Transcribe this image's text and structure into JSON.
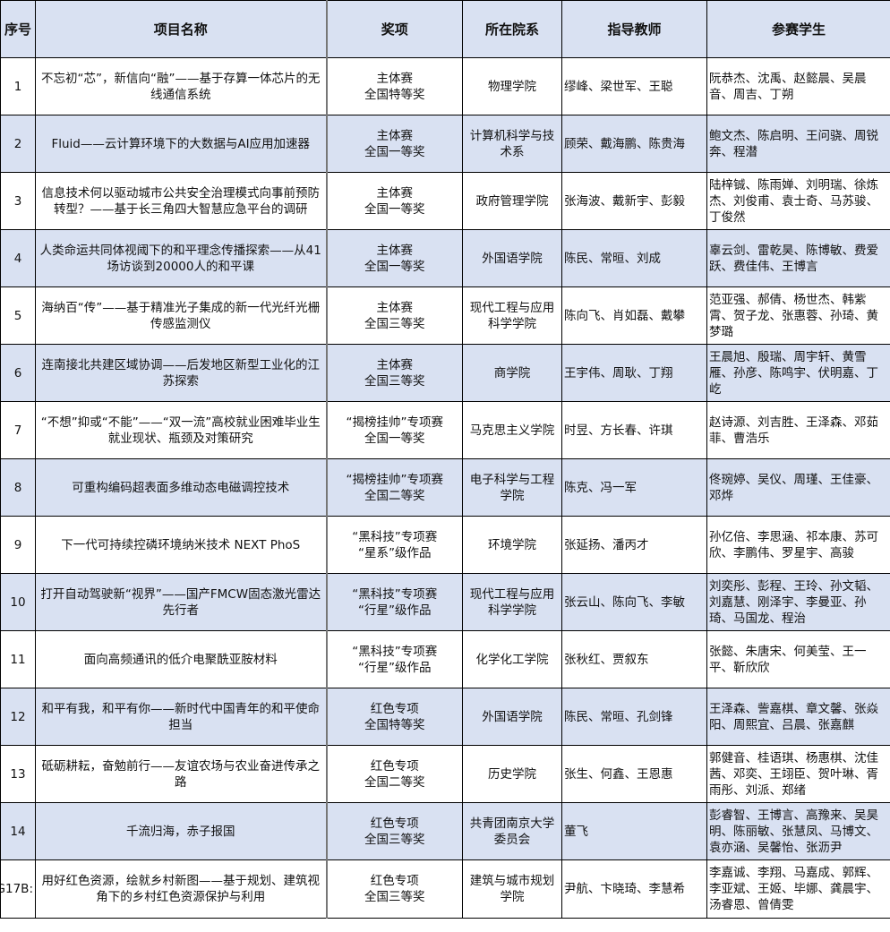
{
  "headers": [
    "序号",
    "项目名称",
    "奖项",
    "所在院系",
    "指导教师",
    "参赛学生"
  ],
  "colors": {
    "header_bg": "#d9e1f2",
    "stripe_bg": "#d9e1f2",
    "border": "#000000"
  },
  "rows": [
    {
      "no": "1",
      "name": "不忘初“芯”，新信向“融”——基于存算一体芯片的无线通信系统",
      "award": [
        "主体赛",
        "全国特等奖"
      ],
      "dept": "物理学院",
      "teachers": "缪峰、梁世军、王聪",
      "students": "阮恭杰、沈禹、赵懿晨、吴晨音、周吉、丁朔"
    },
    {
      "no": "2",
      "name": "Fluid——云计算环境下的大数据与AI应用加速器",
      "award": [
        "主体赛",
        "全国一等奖"
      ],
      "dept": "计算机科学与技术系",
      "teachers": "顾荣、戴海鹏、陈贵海",
      "students": "鲍文杰、陈启明、王问骁、周锐奔、程潜"
    },
    {
      "no": "3",
      "name": "信息技术何以驱动城市公共安全治理模式向事前预防转型？——基于长三角四大智慧应急平台的调研",
      "award": [
        "主体赛",
        "全国一等奖"
      ],
      "dept": "政府管理学院",
      "teachers": "张海波、戴新宇、彭毅",
      "students": "陆梓铖、陈雨婵、刘明瑞、徐炼杰、刘俊甫、袁士奇、马苏骏、丁俊然"
    },
    {
      "no": "4",
      "name": "人类命运共同体视阈下的和平理念传播探索——从41场访谈到20000人的和平课",
      "award": [
        "主体赛",
        "全国一等奖"
      ],
      "dept": "外国语学院",
      "teachers": "陈民、常晅、刘成",
      "students": "辜云剑、雷乾昊、陈博敏、费爱跃、费佳伟、王博言"
    },
    {
      "no": "5",
      "name": "海纳百“传”——基于精准光子集成的新一代光纤光栅传感监测仪",
      "award": [
        "主体赛",
        "全国三等奖"
      ],
      "dept": "现代工程与应用科学学院",
      "teachers": "陈向飞、肖如磊、戴攀",
      "students": "范亚强、郝倩、杨世杰、韩紫霄、贺子龙、张惠蓉、孙琦、黄梦璐"
    },
    {
      "no": "6",
      "name": "连南接北共建区域协调——后发地区新型工业化的江苏探索",
      "award": [
        "主体赛",
        "全国三等奖"
      ],
      "dept": "商学院",
      "teachers": "王宇伟、周耿、丁翔",
      "students": "王晨旭、殷瑞、周宇轩、黄雪雁、孙彦、陈鸣宇、伏明嘉、丁屹"
    },
    {
      "no": "7",
      "name": "“不想”抑或“不能”——“双一流”高校就业困难毕业生就业现状、瓶颈及对策研究",
      "award": [
        "“揭榜挂帅”专项赛",
        "全国一等奖"
      ],
      "dept": "马克思主义学院",
      "teachers": "时昱、方长春、许琪",
      "students": "赵诗源、刘吉胜、王泽森、邓茹菲、曹浩乐"
    },
    {
      "no": "8",
      "name": "可重构编码超表面多维动态电磁调控技术",
      "award": [
        "“揭榜挂帅”专项赛",
        "全国二等奖"
      ],
      "dept": "电子科学与工程学院",
      "teachers": "陈克、冯一军",
      "students": "佟琬婷、吴仪、周瑾、王佳豪、邓烨"
    },
    {
      "no": "9",
      "name": "下一代可持续控磷环境纳米技术 NEXT PhoS",
      "award": [
        "“黑科技”专项赛",
        "“星系”级作品"
      ],
      "dept": "环境学院",
      "teachers": "张延扬、潘丙才",
      "students": "孙亿倍、李思涵、祁本康、苏可欣、李鹏伟、罗星宇、高骏"
    },
    {
      "no": "10",
      "name": "打开自动驾驶新“视界”——国产FMCW固态激光雷达先行者",
      "award": [
        "“黑科技”专项赛",
        "“行星”级作品"
      ],
      "dept": "现代工程与应用科学学院",
      "teachers": "张云山、陈向飞、李敏",
      "students": "刘奕彤、彭程、王玲、孙文韬、刘嘉慧、刚泽宇、李曼亚、孙琦、马国龙、程治"
    },
    {
      "no": "11",
      "name": "面向高频通讯的低介电聚酰亚胺材料",
      "award": [
        "“黑科技”专项赛",
        "“行星”级作品"
      ],
      "dept": "化学化工学院",
      "teachers": "张秋红、贾叙东",
      "students": "张懿、朱唐宋、何美莹、王一平、靳欣欣"
    },
    {
      "no": "12",
      "name": "和平有我，和平有你——新时代中国青年的和平使命担当",
      "award": [
        "红色专项",
        "全国特等奖"
      ],
      "dept": "外国语学院",
      "teachers": "陈民、常晅、孔剑锋",
      "students": "王泽森、訾嘉棋、章文馨、张焱阳、周熙宜、吕晨、张嘉麒"
    },
    {
      "no": "13",
      "name": "砥砺耕耘，奋勉前行——友谊农场与农业奋进传承之路",
      "award": [
        "红色专项",
        "全国二等奖"
      ],
      "dept": "历史学院",
      "teachers": "张生、何鑫、王恩惠",
      "students": "郭健音、桂语琪、杨惠棋、沈佳茜、邓奕、王翊臣、贺叶琳、胥雨彤、刘派、郑绪"
    },
    {
      "no": "14",
      "name": "千流归海，赤子报国",
      "award": [
        "红色专项",
        "全国三等奖"
      ],
      "dept": "共青团南京大学委员会",
      "teachers": "董飞",
      "students": "彭睿智、王博言、高豫来、吴昊明、陈丽敏、张慧凤、马博文、袁亦涵、吴馨怡、张沥尹"
    },
    {
      "no": ":G17B",
      "name": "用好红色资源，绘就乡村新图——基于规划、建筑视角下的乡村红色资源保护与利用",
      "award": [
        "红色专项",
        "全国三等奖"
      ],
      "dept": "建筑与城市规划学院",
      "teachers": "尹航、卞晓琦、李慧希",
      "students": "李嘉诚、李翔、马嘉成、郭辉、李亚斌、王姬、毕娜、龚晨宇、汤睿恩、曾倩雯"
    }
  ]
}
